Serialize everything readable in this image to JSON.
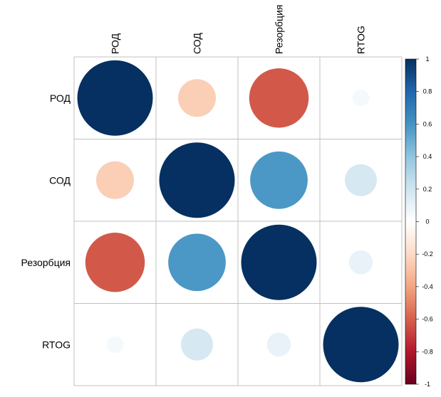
{
  "chart_data": {
    "type": "heatmap",
    "title": "",
    "row_labels": [
      "РОД",
      "СОД",
      "Резорбция",
      "RTOG"
    ],
    "col_labels": [
      "РОД",
      "СОД",
      "Резорбция",
      "RTOG"
    ],
    "matrix": [
      [
        1.0,
        -0.25,
        -0.62,
        0.05
      ],
      [
        -0.25,
        1.0,
        0.58,
        0.18
      ],
      [
        -0.62,
        0.58,
        1.0,
        0.1
      ],
      [
        0.05,
        0.18,
        0.1,
        1.0
      ]
    ],
    "value_range": [
      -1,
      1
    ],
    "colorbar_ticks": [
      "1",
      "0.8",
      "0.6",
      "0.4",
      "0.2",
      "0",
      "-0.2",
      "-0.4",
      "-0.6",
      "-0.8",
      "-1"
    ],
    "colors": {
      "positive": "#053061",
      "negative": "#67001f",
      "neutral": "#ffffff",
      "grid": "#c0c0c0"
    }
  }
}
